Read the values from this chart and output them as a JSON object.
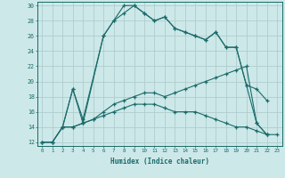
{
  "xlabel": "Humidex (Indice chaleur)",
  "series": {
    "curve1_x": [
      0,
      1,
      2,
      3,
      4,
      6,
      7,
      8,
      9,
      10,
      11,
      12,
      13,
      14,
      15,
      16,
      17,
      18,
      19,
      20,
      21,
      22
    ],
    "curve1_y": [
      12,
      12,
      14,
      19,
      15,
      26,
      28,
      30,
      30,
      29,
      28,
      28.5,
      27,
      26.5,
      26,
      25.5,
      26.5,
      24.5,
      24.5,
      19.5,
      19,
      17.5
    ],
    "curve2_x": [
      2,
      3,
      4,
      6,
      7,
      8,
      9,
      10,
      11,
      12,
      13,
      14,
      15,
      16,
      17,
      18,
      19,
      20,
      21,
      22,
      23
    ],
    "curve2_y": [
      14,
      19,
      14.5,
      26,
      28,
      29,
      30,
      29,
      28,
      28.5,
      27,
      26.5,
      26,
      25.5,
      26.5,
      24.5,
      24.5,
      19.5,
      14.5,
      13,
      13
    ],
    "curve3_x": [
      0,
      1,
      2,
      3,
      4,
      5,
      6,
      7,
      8,
      9,
      10,
      11,
      12,
      13,
      14,
      15,
      16,
      17,
      18,
      19,
      20,
      21,
      22
    ],
    "curve3_y": [
      12,
      12,
      14,
      14,
      14.5,
      15,
      15.5,
      16,
      16.5,
      17,
      17,
      17,
      16.5,
      16,
      16,
      16,
      15.5,
      15,
      14.5,
      14,
      14,
      13.5,
      13
    ],
    "curve4_x": [
      0,
      1,
      2,
      3,
      4,
      5,
      6,
      7,
      8,
      9,
      10,
      11,
      12,
      13,
      14,
      15,
      16,
      17,
      18,
      19,
      20,
      21,
      22
    ],
    "curve4_y": [
      12,
      12,
      14,
      14,
      14.5,
      15,
      16,
      17,
      17.5,
      18,
      18.5,
      18.5,
      18,
      18.5,
      19,
      19.5,
      20,
      20.5,
      21,
      21.5,
      22,
      14.5,
      13
    ]
  },
  "line_color": "#1a6b6b",
  "bg_color": "#cde8e8",
  "grid_color": "#b0cccc",
  "xlim": [
    -0.5,
    23.5
  ],
  "ylim": [
    11.5,
    30.5
  ],
  "yticks": [
    12,
    14,
    16,
    18,
    20,
    22,
    24,
    26,
    28,
    30
  ],
  "xticks": [
    0,
    1,
    2,
    3,
    4,
    5,
    6,
    7,
    8,
    9,
    10,
    11,
    12,
    13,
    14,
    15,
    16,
    17,
    18,
    19,
    20,
    21,
    22,
    23
  ]
}
